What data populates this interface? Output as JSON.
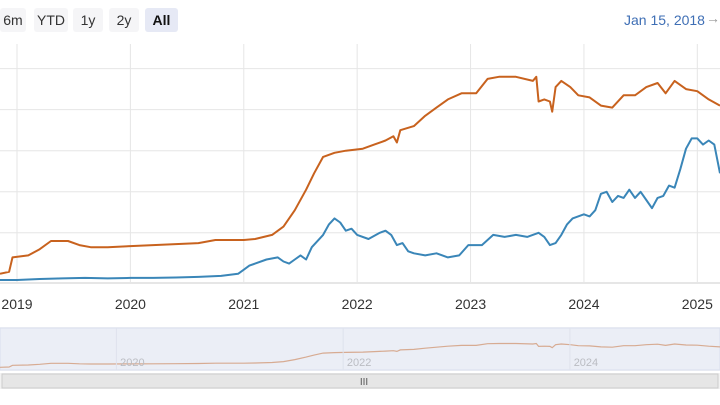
{
  "range_selector": {
    "buttons": [
      {
        "label": "6m",
        "active": false
      },
      {
        "label": "YTD",
        "active": false
      },
      {
        "label": "1y",
        "active": false
      },
      {
        "label": "2y",
        "active": false
      },
      {
        "label": "All",
        "active": true
      }
    ],
    "start_date": "Jan 15, 2018",
    "arrow": "→"
  },
  "colors": {
    "series_orange": "#c8621e",
    "series_blue": "#3a86b8",
    "grid": "#e6e6e6",
    "navigator_mask": "#e3e8f3"
  },
  "chart_data": {
    "type": "line",
    "title": "",
    "xlabel": "",
    "ylabel": "",
    "x_range": [
      2018.85,
      2025.2
    ],
    "y_range": [
      0,
      115
    ],
    "x_ticks": [
      {
        "label": "2019",
        "value": 2019
      },
      {
        "label": "2020",
        "value": 2020
      },
      {
        "label": "2021",
        "value": 2021
      },
      {
        "label": "2022",
        "value": 2022
      },
      {
        "label": "2023",
        "value": 2023
      },
      {
        "label": "2024",
        "value": 2024
      },
      {
        "label": "2025",
        "value": 2025
      }
    ],
    "y_gridlines": [
      23,
      43,
      63,
      83,
      103
    ],
    "series": [
      {
        "name": "orange",
        "color": "#c8621e",
        "points": [
          [
            2018.85,
            3
          ],
          [
            2018.93,
            4
          ],
          [
            2018.96,
            11
          ],
          [
            2019.1,
            12
          ],
          [
            2019.2,
            15
          ],
          [
            2019.3,
            19
          ],
          [
            2019.45,
            19
          ],
          [
            2019.55,
            17
          ],
          [
            2019.65,
            16
          ],
          [
            2019.8,
            16
          ],
          [
            2020.0,
            16.5
          ],
          [
            2020.2,
            17
          ],
          [
            2020.4,
            17.5
          ],
          [
            2020.6,
            18
          ],
          [
            2020.75,
            19.5
          ],
          [
            2020.85,
            19.5
          ],
          [
            2021.0,
            19.5
          ],
          [
            2021.1,
            20
          ],
          [
            2021.25,
            22
          ],
          [
            2021.35,
            26
          ],
          [
            2021.45,
            34
          ],
          [
            2021.55,
            44
          ],
          [
            2021.62,
            52
          ],
          [
            2021.7,
            60
          ],
          [
            2021.8,
            62
          ],
          [
            2021.9,
            63
          ],
          [
            2022.05,
            64
          ],
          [
            2022.15,
            66
          ],
          [
            2022.25,
            68
          ],
          [
            2022.32,
            70
          ],
          [
            2022.35,
            67
          ],
          [
            2022.38,
            73
          ],
          [
            2022.5,
            75
          ],
          [
            2022.6,
            80
          ],
          [
            2022.7,
            84
          ],
          [
            2022.8,
            88
          ],
          [
            2022.92,
            91
          ],
          [
            2023.05,
            91
          ],
          [
            2023.15,
            98
          ],
          [
            2023.25,
            99
          ],
          [
            2023.4,
            99
          ],
          [
            2023.55,
            97
          ],
          [
            2023.58,
            99
          ],
          [
            2023.6,
            87
          ],
          [
            2023.65,
            88
          ],
          [
            2023.7,
            87
          ],
          [
            2023.72,
            82
          ],
          [
            2023.75,
            94
          ],
          [
            2023.8,
            97
          ],
          [
            2023.88,
            94
          ],
          [
            2023.95,
            90
          ],
          [
            2024.05,
            89
          ],
          [
            2024.15,
            85
          ],
          [
            2024.25,
            84
          ],
          [
            2024.35,
            90
          ],
          [
            2024.45,
            90
          ],
          [
            2024.55,
            94
          ],
          [
            2024.65,
            96
          ],
          [
            2024.72,
            91
          ],
          [
            2024.8,
            97
          ],
          [
            2024.9,
            93
          ],
          [
            2025.0,
            92
          ],
          [
            2025.1,
            88
          ],
          [
            2025.2,
            85
          ]
        ]
      },
      {
        "name": "blue",
        "color": "#3a86b8",
        "points": [
          [
            2018.85,
            0
          ],
          [
            2019.0,
            0
          ],
          [
            2019.2,
            0.5
          ],
          [
            2019.4,
            0.8
          ],
          [
            2019.6,
            1
          ],
          [
            2019.8,
            0.8
          ],
          [
            2020.0,
            1
          ],
          [
            2020.2,
            1
          ],
          [
            2020.4,
            1.2
          ],
          [
            2020.6,
            1.5
          ],
          [
            2020.8,
            2
          ],
          [
            2020.95,
            3
          ],
          [
            2021.0,
            5
          ],
          [
            2021.05,
            7
          ],
          [
            2021.1,
            8
          ],
          [
            2021.2,
            10
          ],
          [
            2021.3,
            11
          ],
          [
            2021.35,
            9
          ],
          [
            2021.4,
            8
          ],
          [
            2021.45,
            10
          ],
          [
            2021.5,
            12
          ],
          [
            2021.55,
            10
          ],
          [
            2021.6,
            16
          ],
          [
            2021.7,
            22
          ],
          [
            2021.75,
            27
          ],
          [
            2021.8,
            30
          ],
          [
            2021.85,
            28
          ],
          [
            2021.9,
            24
          ],
          [
            2021.95,
            25
          ],
          [
            2022.0,
            22
          ],
          [
            2022.1,
            20
          ],
          [
            2022.2,
            23
          ],
          [
            2022.25,
            24
          ],
          [
            2022.3,
            22
          ],
          [
            2022.35,
            17
          ],
          [
            2022.4,
            18
          ],
          [
            2022.45,
            14
          ],
          [
            2022.5,
            13
          ],
          [
            2022.6,
            12
          ],
          [
            2022.7,
            13
          ],
          [
            2022.8,
            11
          ],
          [
            2022.9,
            12
          ],
          [
            2022.98,
            17
          ],
          [
            2023.1,
            17
          ],
          [
            2023.2,
            22
          ],
          [
            2023.3,
            21
          ],
          [
            2023.4,
            22
          ],
          [
            2023.5,
            21
          ],
          [
            2023.6,
            23
          ],
          [
            2023.65,
            21
          ],
          [
            2023.7,
            17
          ],
          [
            2023.75,
            18
          ],
          [
            2023.8,
            22
          ],
          [
            2023.85,
            27
          ],
          [
            2023.9,
            30
          ],
          [
            2024.0,
            32
          ],
          [
            2024.05,
            31
          ],
          [
            2024.1,
            34
          ],
          [
            2024.15,
            42
          ],
          [
            2024.2,
            43
          ],
          [
            2024.25,
            38
          ],
          [
            2024.3,
            41
          ],
          [
            2024.35,
            40
          ],
          [
            2024.4,
            44
          ],
          [
            2024.45,
            40
          ],
          [
            2024.5,
            43
          ],
          [
            2024.55,
            39
          ],
          [
            2024.6,
            35
          ],
          [
            2024.65,
            40
          ],
          [
            2024.7,
            41
          ],
          [
            2024.75,
            46
          ],
          [
            2024.8,
            45
          ],
          [
            2024.85,
            54
          ],
          [
            2024.9,
            64
          ],
          [
            2024.95,
            69
          ],
          [
            2025.0,
            69
          ],
          [
            2025.05,
            66
          ],
          [
            2025.1,
            68
          ],
          [
            2025.15,
            66
          ],
          [
            2025.2,
            52
          ]
        ]
      }
    ]
  },
  "navigator": {
    "tick_labels": [
      {
        "label": "2020",
        "value": 2020
      },
      {
        "label": "2022",
        "value": 2022
      },
      {
        "label": "2024",
        "value": 2024
      }
    ],
    "scrollbar_grip": "III"
  }
}
